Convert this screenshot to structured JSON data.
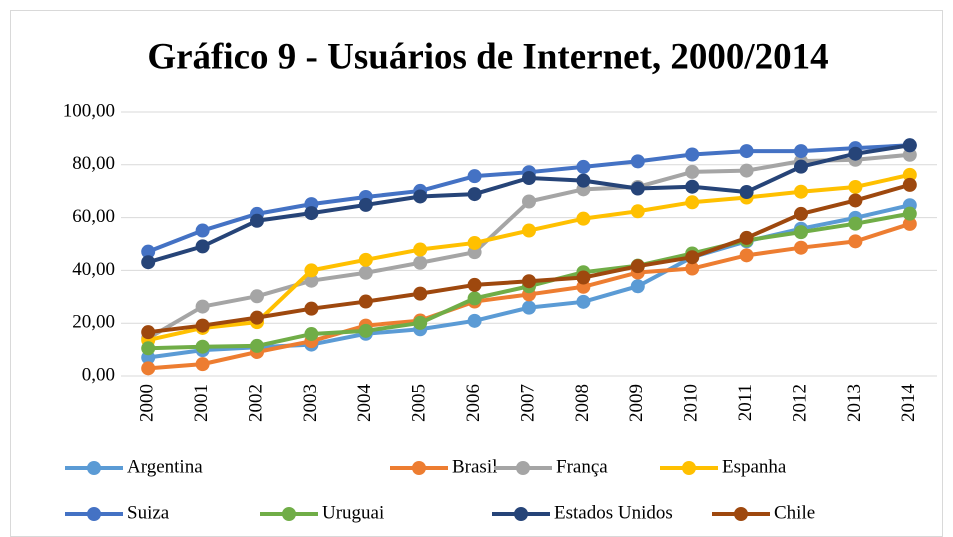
{
  "chart_data": {
    "type": "line",
    "title": "Gráfico 9 - Usuários de Internet, 2000/2014",
    "categories": [
      "2000",
      "2001",
      "2002",
      "2003",
      "2004",
      "2005",
      "2006",
      "2007",
      "2008",
      "2009",
      "2010",
      "2011",
      "2012",
      "2013",
      "2014"
    ],
    "ylim": [
      0,
      100
    ],
    "yticks": [
      {
        "value": 0,
        "label": "0,00"
      },
      {
        "value": 20,
        "label": "20,00"
      },
      {
        "value": 40,
        "label": "40,00"
      },
      {
        "value": 60,
        "label": "60,00"
      },
      {
        "value": 80,
        "label": "80,00"
      },
      {
        "value": 100,
        "label": "100,00"
      }
    ],
    "grid": true,
    "legend": "bottom",
    "series": [
      {
        "name": "Argentina",
        "color": "#5B9BD5",
        "values": [
          7.0,
          9.8,
          10.9,
          11.9,
          16.0,
          17.7,
          20.9,
          25.9,
          28.1,
          34.0,
          45.0,
          51.0,
          55.8,
          59.9,
          64.7
        ]
      },
      {
        "name": "Brasil",
        "color": "#ED7D31",
        "values": [
          2.9,
          4.5,
          9.1,
          13.2,
          19.1,
          21.0,
          28.2,
          30.9,
          33.8,
          39.2,
          40.7,
          45.7,
          48.6,
          51.0,
          57.6
        ]
      },
      {
        "name": "França",
        "color": "#A5A5A5",
        "values": [
          14.3,
          26.3,
          30.2,
          36.1,
          39.1,
          42.9,
          46.9,
          66.1,
          70.7,
          71.6,
          77.3,
          77.8,
          81.4,
          81.9,
          83.8
        ]
      },
      {
        "name": "Espanha",
        "color": "#FFC000",
        "values": [
          13.6,
          18.2,
          20.4,
          40.0,
          44.0,
          47.9,
          50.4,
          55.1,
          59.6,
          62.4,
          65.8,
          67.6,
          69.8,
          71.6,
          76.2
        ]
      },
      {
        "name": "Suiza",
        "color": "#4472C4",
        "values": [
          47.1,
          55.1,
          61.4,
          65.1,
          67.8,
          70.1,
          75.7,
          77.2,
          79.2,
          81.3,
          83.9,
          85.2,
          85.2,
          86.3,
          87.4
        ]
      },
      {
        "name": "Uruguai",
        "color": "#70AD47",
        "values": [
          10.5,
          11.1,
          11.4,
          15.9,
          17.1,
          20.1,
          29.4,
          34.0,
          39.3,
          41.8,
          46.4,
          51.4,
          54.5,
          57.7,
          61.5
        ]
      },
      {
        "name": "Estados Unidos",
        "color": "#264478",
        "values": [
          43.1,
          49.1,
          58.8,
          61.7,
          64.8,
          68.0,
          68.9,
          75.0,
          74.0,
          71.0,
          71.7,
          69.7,
          79.3,
          84.2,
          87.4
        ]
      },
      {
        "name": "Chile",
        "color": "#9E480E",
        "values": [
          16.6,
          19.1,
          22.1,
          25.5,
          28.2,
          31.2,
          34.5,
          35.9,
          37.3,
          41.6,
          45.0,
          52.3,
          61.4,
          66.5,
          72.4
        ]
      }
    ]
  }
}
